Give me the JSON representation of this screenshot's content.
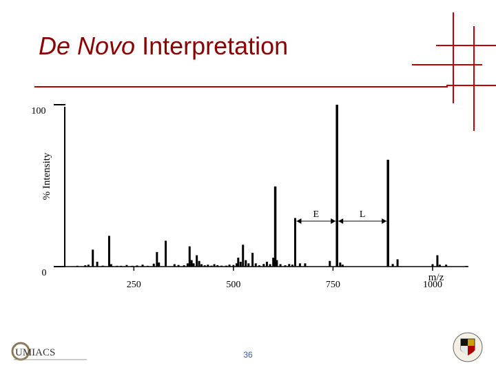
{
  "slide": {
    "title_italic": "De Novo",
    "title_rest": " Interpretation",
    "page_number": "36",
    "logo_left_text": "UMIACS",
    "logo_right": "university-seal-icon"
  },
  "colors": {
    "title": "#8b0000",
    "rule": "#b00000",
    "bars": "#000000"
  },
  "chart_data": {
    "type": "bar",
    "ylabel": "% Intensity",
    "xlabel": "m/z",
    "xlim": [
      80,
      1090
    ],
    "ylim": [
      0,
      100
    ],
    "y_ticks": [
      "0",
      "100"
    ],
    "x_ticks": [
      250,
      500,
      750,
      1000
    ],
    "peaks": [
      {
        "x": 108,
        "y": 0.5
      },
      {
        "x": 128,
        "y": 0.8
      },
      {
        "x": 136,
        "y": 1.2
      },
      {
        "x": 147,
        "y": 10.5
      },
      {
        "x": 158,
        "y": 3.0
      },
      {
        "x": 172,
        "y": 0.6
      },
      {
        "x": 188,
        "y": 19.0
      },
      {
        "x": 193,
        "y": 1.5
      },
      {
        "x": 208,
        "y": 0.5
      },
      {
        "x": 218,
        "y": 0.5
      },
      {
        "x": 232,
        "y": 1.0
      },
      {
        "x": 246,
        "y": 0.5
      },
      {
        "x": 258,
        "y": 0.7
      },
      {
        "x": 272,
        "y": 1.2
      },
      {
        "x": 285,
        "y": 0.5
      },
      {
        "x": 300,
        "y": 1.8
      },
      {
        "x": 308,
        "y": 9.0
      },
      {
        "x": 313,
        "y": 2.5
      },
      {
        "x": 330,
        "y": 16.0
      },
      {
        "x": 352,
        "y": 1.5
      },
      {
        "x": 362,
        "y": 1.0
      },
      {
        "x": 376,
        "y": 0.8
      },
      {
        "x": 385,
        "y": 2.0
      },
      {
        "x": 390,
        "y": 12.5
      },
      {
        "x": 395,
        "y": 4.0
      },
      {
        "x": 400,
        "y": 2.0
      },
      {
        "x": 408,
        "y": 7.0
      },
      {
        "x": 414,
        "y": 3.5
      },
      {
        "x": 420,
        "y": 1.5
      },
      {
        "x": 428,
        "y": 0.8
      },
      {
        "x": 436,
        "y": 1.2
      },
      {
        "x": 445,
        "y": 0.6
      },
      {
        "x": 452,
        "y": 1.5
      },
      {
        "x": 460,
        "y": 0.9
      },
      {
        "x": 470,
        "y": 0.6
      },
      {
        "x": 482,
        "y": 0.6
      },
      {
        "x": 490,
        "y": 1.2
      },
      {
        "x": 500,
        "y": 1.0
      },
      {
        "x": 508,
        "y": 2.0
      },
      {
        "x": 512,
        "y": 5.5
      },
      {
        "x": 518,
        "y": 3.0
      },
      {
        "x": 524,
        "y": 13.5
      },
      {
        "x": 531,
        "y": 4.0
      },
      {
        "x": 538,
        "y": 2.0
      },
      {
        "x": 548,
        "y": 8.5
      },
      {
        "x": 556,
        "y": 2.0
      },
      {
        "x": 565,
        "y": 0.8
      },
      {
        "x": 576,
        "y": 1.6
      },
      {
        "x": 584,
        "y": 3.0
      },
      {
        "x": 592,
        "y": 1.5
      },
      {
        "x": 600,
        "y": 5.5
      },
      {
        "x": 605,
        "y": 49.5
      },
      {
        "x": 609,
        "y": 4.0
      },
      {
        "x": 618,
        "y": 1.5
      },
      {
        "x": 630,
        "y": 0.8
      },
      {
        "x": 640,
        "y": 1.6
      },
      {
        "x": 648,
        "y": 1.2
      },
      {
        "x": 655,
        "y": 30.0
      },
      {
        "x": 667,
        "y": 2.0
      },
      {
        "x": 680,
        "y": 2.0
      },
      {
        "x": 742,
        "y": 3.5
      },
      {
        "x": 760,
        "y": 100.0
      },
      {
        "x": 768,
        "y": 2.5
      },
      {
        "x": 774,
        "y": 1.2
      },
      {
        "x": 888,
        "y": 66.0
      },
      {
        "x": 900,
        "y": 1.6
      },
      {
        "x": 912,
        "y": 4.5
      },
      {
        "x": 1000,
        "y": 1.5
      },
      {
        "x": 1012,
        "y": 7.0
      },
      {
        "x": 1018,
        "y": 1.2
      },
      {
        "x": 1034,
        "y": 1.2
      },
      {
        "x": 1085,
        "y": 0.4
      }
    ],
    "spans": [
      {
        "label": "E",
        "from": 655,
        "to": 760
      },
      {
        "label": "L",
        "from": 760,
        "to": 888
      }
    ]
  }
}
